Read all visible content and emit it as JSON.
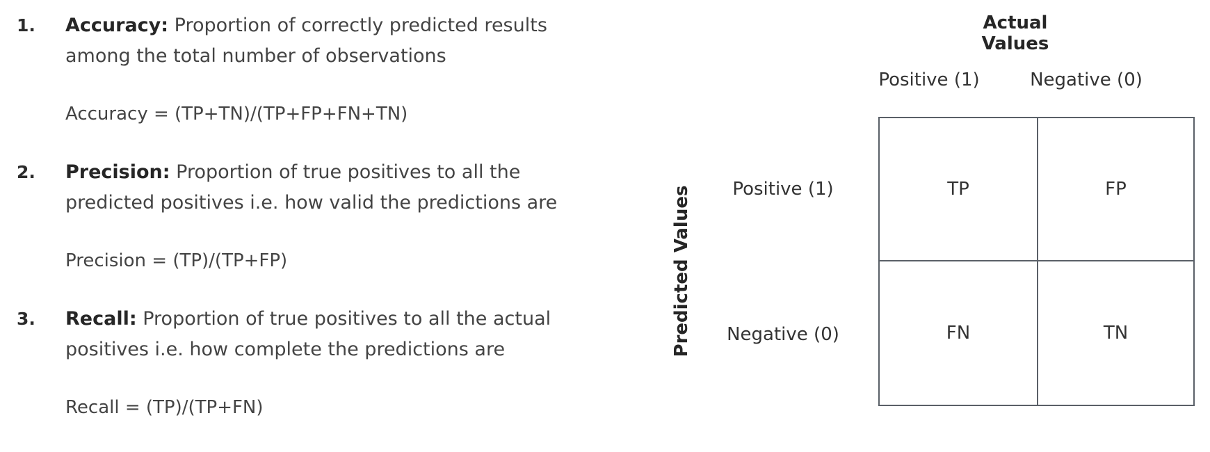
{
  "definitions": [
    {
      "number": "1.",
      "term": "Accuracy:",
      "line1": "Proportion of correctly predicted results",
      "line2": "among the total number of observations",
      "formula": "Accuracy = (TP+TN)/(TP+FP+FN+TN)"
    },
    {
      "number": "2.",
      "term": "Precision:",
      "line1": "Proportion of true positives to all the",
      "line2": "predicted positives i.e. how valid the predictions are",
      "formula": "Precision = (TP)/(TP+FP)"
    },
    {
      "number": "3.",
      "term": "Recall:",
      "line1": "Proportion of true positives to all the actual",
      "line2": "positives i.e. how complete the predictions are",
      "formula": "Recall = (TP)/(TP+FN)"
    }
  ],
  "matrix": {
    "actual_title": "Actual Values",
    "predicted_title": "Predicted Values",
    "columns": [
      "Positive (1)",
      "Negative (0)"
    ],
    "rows": [
      "Positive (1)",
      "Negative (0)"
    ],
    "cells": {
      "tp": "TP",
      "fp": "FP",
      "fn": "FN",
      "tn": "TN"
    }
  }
}
